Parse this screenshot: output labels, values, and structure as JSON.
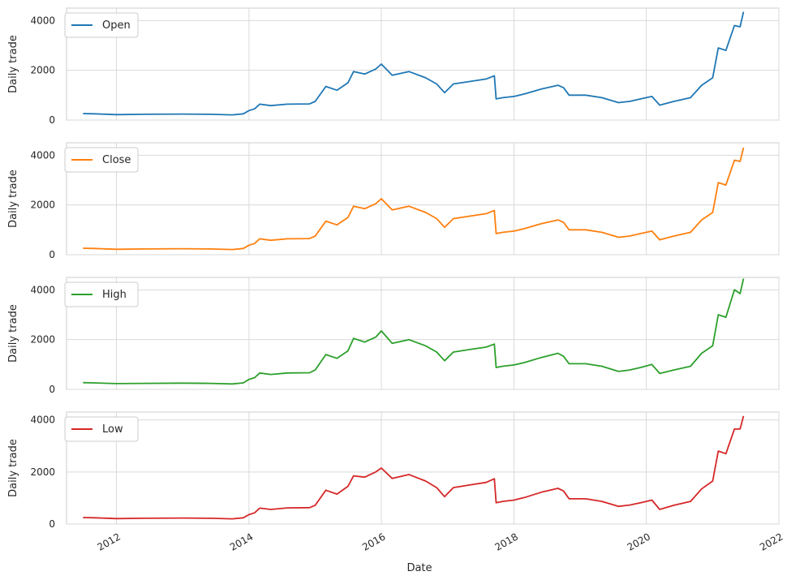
{
  "figure": {
    "xlabel": "Date",
    "x_ticks": [
      "2012",
      "2014",
      "2016",
      "2018",
      "2020",
      "2022"
    ]
  },
  "chart_data": [
    {
      "type": "line",
      "legend": "top-left",
      "grid": true,
      "color": "#1f77b4",
      "xlabel": "",
      "ylabel": "Daily trade",
      "ylim": [
        0,
        4500
      ],
      "y_ticks": [
        0,
        2000,
        4000
      ],
      "x_range": [
        "2011-04-01",
        "2022-01-01"
      ],
      "series": [
        {
          "name": "Open",
          "points": [
            [
              "2011-07-01",
              260
            ],
            [
              "2011-09-01",
              250
            ],
            [
              "2012-01-01",
              220
            ],
            [
              "2012-06-01",
              230
            ],
            [
              "2013-01-01",
              240
            ],
            [
              "2013-06-01",
              230
            ],
            [
              "2013-10-01",
              210
            ],
            [
              "2013-12-01",
              250
            ],
            [
              "2014-01-01",
              380
            ],
            [
              "2014-02-01",
              450
            ],
            [
              "2014-03-01",
              640
            ],
            [
              "2014-05-01",
              580
            ],
            [
              "2014-08-01",
              640
            ],
            [
              "2014-12-01",
              650
            ],
            [
              "2015-01-01",
              750
            ],
            [
              "2015-03-01",
              1350
            ],
            [
              "2015-05-01",
              1200
            ],
            [
              "2015-07-01",
              1500
            ],
            [
              "2015-08-01",
              1950
            ],
            [
              "2015-10-01",
              1850
            ],
            [
              "2015-12-01",
              2050
            ],
            [
              "2016-01-01",
              2250
            ],
            [
              "2016-03-01",
              1800
            ],
            [
              "2016-06-01",
              1950
            ],
            [
              "2016-09-01",
              1700
            ],
            [
              "2016-11-01",
              1450
            ],
            [
              "2016-12-15",
              1100
            ],
            [
              "2017-02-01",
              1450
            ],
            [
              "2017-05-01",
              1550
            ],
            [
              "2017-08-01",
              1650
            ],
            [
              "2017-09-15",
              1780
            ],
            [
              "2017-09-25",
              850
            ],
            [
              "2017-11-01",
              900
            ],
            [
              "2018-01-01",
              950
            ],
            [
              "2018-03-01",
              1050
            ],
            [
              "2018-06-01",
              1250
            ],
            [
              "2018-09-01",
              1400
            ],
            [
              "2018-10-01",
              1300
            ],
            [
              "2018-11-01",
              1000
            ],
            [
              "2019-02-01",
              1000
            ],
            [
              "2019-05-01",
              900
            ],
            [
              "2019-08-01",
              700
            ],
            [
              "2019-10-01",
              750
            ],
            [
              "2019-12-01",
              850
            ],
            [
              "2020-02-01",
              950
            ],
            [
              "2020-03-15",
              600
            ],
            [
              "2020-06-01",
              750
            ],
            [
              "2020-09-01",
              900
            ],
            [
              "2020-11-01",
              1400
            ],
            [
              "2021-01-01",
              1700
            ],
            [
              "2021-02-01",
              2900
            ],
            [
              "2021-03-15",
              2800
            ],
            [
              "2021-05-01",
              3800
            ],
            [
              "2021-06-01",
              3750
            ],
            [
              "2021-06-20",
              4350
            ]
          ]
        }
      ]
    },
    {
      "type": "line",
      "legend": "top-left",
      "grid": true,
      "color": "#ff7f0e",
      "xlabel": "",
      "ylabel": "Daily trade",
      "ylim": [
        0,
        4500
      ],
      "y_ticks": [
        0,
        2000,
        4000
      ],
      "x_range": [
        "2011-04-01",
        "2022-01-01"
      ],
      "series": [
        {
          "name": "Close",
          "points": [
            [
              "2011-07-01",
              260
            ],
            [
              "2011-09-01",
              250
            ],
            [
              "2012-01-01",
              220
            ],
            [
              "2012-06-01",
              230
            ],
            [
              "2013-01-01",
              240
            ],
            [
              "2013-06-01",
              230
            ],
            [
              "2013-10-01",
              210
            ],
            [
              "2013-12-01",
              250
            ],
            [
              "2014-01-01",
              380
            ],
            [
              "2014-02-01",
              450
            ],
            [
              "2014-03-01",
              640
            ],
            [
              "2014-05-01",
              580
            ],
            [
              "2014-08-01",
              640
            ],
            [
              "2014-12-01",
              650
            ],
            [
              "2015-01-01",
              750
            ],
            [
              "2015-03-01",
              1350
            ],
            [
              "2015-05-01",
              1200
            ],
            [
              "2015-07-01",
              1500
            ],
            [
              "2015-08-01",
              1950
            ],
            [
              "2015-10-01",
              1850
            ],
            [
              "2015-12-01",
              2050
            ],
            [
              "2016-01-01",
              2250
            ],
            [
              "2016-03-01",
              1800
            ],
            [
              "2016-06-01",
              1950
            ],
            [
              "2016-09-01",
              1700
            ],
            [
              "2016-11-01",
              1450
            ],
            [
              "2016-12-15",
              1100
            ],
            [
              "2017-02-01",
              1450
            ],
            [
              "2017-05-01",
              1550
            ],
            [
              "2017-08-01",
              1650
            ],
            [
              "2017-09-15",
              1780
            ],
            [
              "2017-09-25",
              850
            ],
            [
              "2017-11-01",
              900
            ],
            [
              "2018-01-01",
              950
            ],
            [
              "2018-03-01",
              1050
            ],
            [
              "2018-06-01",
              1250
            ],
            [
              "2018-09-01",
              1400
            ],
            [
              "2018-10-01",
              1300
            ],
            [
              "2018-11-01",
              1000
            ],
            [
              "2019-02-01",
              1000
            ],
            [
              "2019-05-01",
              900
            ],
            [
              "2019-08-01",
              700
            ],
            [
              "2019-10-01",
              750
            ],
            [
              "2019-12-01",
              850
            ],
            [
              "2020-02-01",
              950
            ],
            [
              "2020-03-15",
              600
            ],
            [
              "2020-06-01",
              750
            ],
            [
              "2020-09-01",
              900
            ],
            [
              "2020-11-01",
              1400
            ],
            [
              "2021-01-01",
              1700
            ],
            [
              "2021-02-01",
              2900
            ],
            [
              "2021-03-15",
              2800
            ],
            [
              "2021-05-01",
              3800
            ],
            [
              "2021-06-01",
              3750
            ],
            [
              "2021-06-20",
              4300
            ]
          ]
        }
      ]
    },
    {
      "type": "line",
      "legend": "top-left",
      "grid": true,
      "color": "#2ca02c",
      "xlabel": "",
      "ylabel": "Daily trade",
      "ylim": [
        0,
        4500
      ],
      "y_ticks": [
        0,
        2000,
        4000
      ],
      "x_range": [
        "2011-04-01",
        "2022-01-01"
      ],
      "series": [
        {
          "name": "High",
          "points": [
            [
              "2011-07-01",
              270
            ],
            [
              "2011-09-01",
              260
            ],
            [
              "2012-01-01",
              230
            ],
            [
              "2012-06-01",
              240
            ],
            [
              "2013-01-01",
              250
            ],
            [
              "2013-06-01",
              240
            ],
            [
              "2013-10-01",
              220
            ],
            [
              "2013-12-01",
              260
            ],
            [
              "2014-01-01",
              400
            ],
            [
              "2014-02-01",
              470
            ],
            [
              "2014-03-01",
              660
            ],
            [
              "2014-05-01",
              600
            ],
            [
              "2014-08-01",
              660
            ],
            [
              "2014-12-01",
              670
            ],
            [
              "2015-01-01",
              780
            ],
            [
              "2015-03-01",
              1400
            ],
            [
              "2015-05-01",
              1250
            ],
            [
              "2015-07-01",
              1550
            ],
            [
              "2015-08-01",
              2050
            ],
            [
              "2015-10-01",
              1900
            ],
            [
              "2015-12-01",
              2100
            ],
            [
              "2016-01-01",
              2350
            ],
            [
              "2016-03-01",
              1850
            ],
            [
              "2016-06-01",
              2000
            ],
            [
              "2016-09-01",
              1750
            ],
            [
              "2016-11-01",
              1500
            ],
            [
              "2016-12-15",
              1150
            ],
            [
              "2017-02-01",
              1500
            ],
            [
              "2017-05-01",
              1600
            ],
            [
              "2017-08-01",
              1700
            ],
            [
              "2017-09-15",
              1820
            ],
            [
              "2017-09-25",
              880
            ],
            [
              "2017-11-01",
              930
            ],
            [
              "2018-01-01",
              980
            ],
            [
              "2018-03-01",
              1080
            ],
            [
              "2018-06-01",
              1280
            ],
            [
              "2018-09-01",
              1450
            ],
            [
              "2018-10-01",
              1330
            ],
            [
              "2018-11-01",
              1030
            ],
            [
              "2019-02-01",
              1030
            ],
            [
              "2019-05-01",
              930
            ],
            [
              "2019-08-01",
              720
            ],
            [
              "2019-10-01",
              780
            ],
            [
              "2019-12-01",
              880
            ],
            [
              "2020-02-01",
              1000
            ],
            [
              "2020-03-15",
              640
            ],
            [
              "2020-06-01",
              780
            ],
            [
              "2020-09-01",
              930
            ],
            [
              "2020-11-01",
              1450
            ],
            [
              "2021-01-01",
              1750
            ],
            [
              "2021-02-01",
              3000
            ],
            [
              "2021-03-15",
              2900
            ],
            [
              "2021-05-01",
              4000
            ],
            [
              "2021-06-01",
              3850
            ],
            [
              "2021-06-20",
              4450
            ]
          ]
        }
      ]
    },
    {
      "type": "line",
      "legend": "top-left",
      "grid": true,
      "color": "#d62728",
      "xlabel": "",
      "ylabel": "Daily trade",
      "ylim": [
        0,
        4300
      ],
      "y_ticks": [
        0,
        2000,
        4000
      ],
      "x_range": [
        "2011-04-01",
        "2022-01-01"
      ],
      "series": [
        {
          "name": "Low",
          "points": [
            [
              "2011-07-01",
              250
            ],
            [
              "2011-09-01",
              240
            ],
            [
              "2012-01-01",
              210
            ],
            [
              "2012-06-01",
              220
            ],
            [
              "2013-01-01",
              230
            ],
            [
              "2013-06-01",
              220
            ],
            [
              "2013-10-01",
              200
            ],
            [
              "2013-12-01",
              240
            ],
            [
              "2014-01-01",
              360
            ],
            [
              "2014-02-01",
              430
            ],
            [
              "2014-03-01",
              610
            ],
            [
              "2014-05-01",
              560
            ],
            [
              "2014-08-01",
              620
            ],
            [
              "2014-12-01",
              630
            ],
            [
              "2015-01-01",
              720
            ],
            [
              "2015-03-01",
              1300
            ],
            [
              "2015-05-01",
              1150
            ],
            [
              "2015-07-01",
              1450
            ],
            [
              "2015-08-01",
              1850
            ],
            [
              "2015-10-01",
              1800
            ],
            [
              "2015-12-01",
              2000
            ],
            [
              "2016-01-01",
              2150
            ],
            [
              "2016-03-01",
              1750
            ],
            [
              "2016-06-01",
              1900
            ],
            [
              "2016-09-01",
              1650
            ],
            [
              "2016-11-01",
              1400
            ],
            [
              "2016-12-15",
              1050
            ],
            [
              "2017-02-01",
              1400
            ],
            [
              "2017-05-01",
              1500
            ],
            [
              "2017-08-01",
              1600
            ],
            [
              "2017-09-15",
              1740
            ],
            [
              "2017-09-25",
              820
            ],
            [
              "2017-11-01",
              870
            ],
            [
              "2018-01-01",
              920
            ],
            [
              "2018-03-01",
              1020
            ],
            [
              "2018-06-01",
              1220
            ],
            [
              "2018-09-01",
              1370
            ],
            [
              "2018-10-01",
              1270
            ],
            [
              "2018-11-01",
              970
            ],
            [
              "2019-02-01",
              970
            ],
            [
              "2019-05-01",
              870
            ],
            [
              "2019-08-01",
              680
            ],
            [
              "2019-10-01",
              730
            ],
            [
              "2019-12-01",
              820
            ],
            [
              "2020-02-01",
              920
            ],
            [
              "2020-03-15",
              560
            ],
            [
              "2020-06-01",
              720
            ],
            [
              "2020-09-01",
              870
            ],
            [
              "2020-11-01",
              1350
            ],
            [
              "2021-01-01",
              1650
            ],
            [
              "2021-02-01",
              2800
            ],
            [
              "2021-03-15",
              2700
            ],
            [
              "2021-05-01",
              3650
            ],
            [
              "2021-06-01",
              3650
            ],
            [
              "2021-06-20",
              4150
            ]
          ]
        }
      ]
    }
  ]
}
